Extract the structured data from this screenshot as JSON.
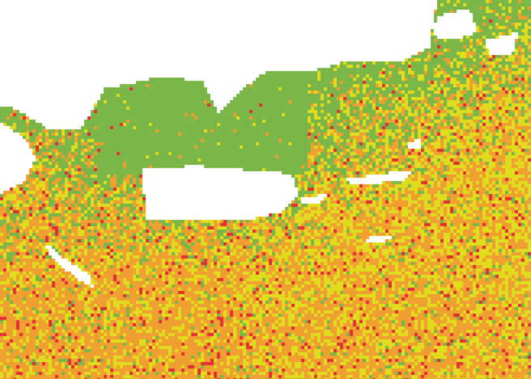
{
  "map": {
    "type": "raster-classification",
    "background_color": "#ffffff",
    "class_colors": {
      "low": "#7ab648",
      "moderate": "#e0dc1e",
      "high": "#f0a030",
      "very_high": "#e03232"
    }
  }
}
